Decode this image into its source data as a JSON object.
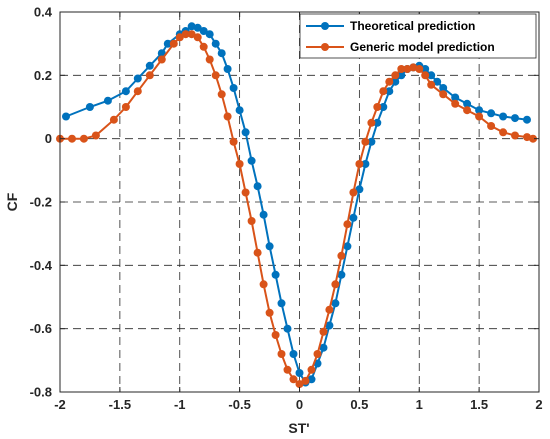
{
  "chart_data": {
    "type": "line",
    "title": "",
    "xlabel": "ST'",
    "ylabel": "CF",
    "xlim": [
      -2,
      2
    ],
    "ylim": [
      -0.8,
      0.4
    ],
    "xticks": [
      -2,
      -1.5,
      -1,
      -0.5,
      0,
      0.5,
      1,
      1.5,
      2
    ],
    "yticks": [
      -0.8,
      -0.6,
      -0.4,
      -0.2,
      0,
      0.2,
      0.4
    ],
    "xtick_labels": [
      "-2",
      "-1.5",
      "-1",
      "-0.5",
      "0",
      "0.5",
      "1",
      "1.5",
      "2"
    ],
    "ytick_labels": [
      "-0.8",
      "-0.6",
      "-0.4",
      "-0.2",
      "0",
      "0.2",
      "0.4"
    ],
    "grid": true,
    "legend_position": "top-right",
    "series": [
      {
        "name": "Theoretical prediction",
        "color": "#0072BD",
        "marker": "circle",
        "x": [
          -1.95,
          -1.75,
          -1.6,
          -1.45,
          -1.35,
          -1.25,
          -1.15,
          -1.1,
          -1.0,
          -0.95,
          -0.9,
          -0.85,
          -0.8,
          -0.75,
          -0.7,
          -0.65,
          -0.6,
          -0.55,
          -0.5,
          -0.45,
          -0.4,
          -0.35,
          -0.3,
          -0.25,
          -0.2,
          -0.15,
          -0.1,
          -0.05,
          0.0,
          0.05,
          0.1,
          0.15,
          0.2,
          0.25,
          0.3,
          0.35,
          0.4,
          0.45,
          0.5,
          0.55,
          0.6,
          0.65,
          0.7,
          0.75,
          0.8,
          0.85,
          0.9,
          0.95,
          1.0,
          1.05,
          1.1,
          1.15,
          1.2,
          1.3,
          1.4,
          1.5,
          1.6,
          1.7,
          1.8,
          1.9
        ],
        "values": [
          0.07,
          0.1,
          0.12,
          0.15,
          0.19,
          0.23,
          0.27,
          0.3,
          0.33,
          0.34,
          0.355,
          0.35,
          0.34,
          0.33,
          0.3,
          0.27,
          0.22,
          0.16,
          0.09,
          0.02,
          -0.07,
          -0.15,
          -0.24,
          -0.34,
          -0.43,
          -0.52,
          -0.6,
          -0.68,
          -0.74,
          -0.77,
          -0.76,
          -0.71,
          -0.66,
          -0.59,
          -0.52,
          -0.43,
          -0.34,
          -0.25,
          -0.16,
          -0.08,
          -0.01,
          0.05,
          0.1,
          0.15,
          0.18,
          0.2,
          0.22,
          0.225,
          0.23,
          0.22,
          0.2,
          0.18,
          0.16,
          0.13,
          0.11,
          0.09,
          0.08,
          0.07,
          0.065,
          0.06
        ]
      },
      {
        "name": "Generic model prediction",
        "color": "#D95319",
        "marker": "circle",
        "x": [
          -2.0,
          -1.9,
          -1.8,
          -1.7,
          -1.55,
          -1.45,
          -1.35,
          -1.25,
          -1.15,
          -1.05,
          -1.0,
          -0.95,
          -0.9,
          -0.85,
          -0.8,
          -0.75,
          -0.7,
          -0.65,
          -0.6,
          -0.55,
          -0.5,
          -0.45,
          -0.4,
          -0.35,
          -0.3,
          -0.25,
          -0.2,
          -0.15,
          -0.1,
          -0.05,
          0.0,
          0.05,
          0.1,
          0.15,
          0.2,
          0.25,
          0.3,
          0.35,
          0.4,
          0.45,
          0.5,
          0.55,
          0.6,
          0.65,
          0.7,
          0.75,
          0.8,
          0.85,
          0.9,
          0.95,
          1.0,
          1.05,
          1.1,
          1.2,
          1.3,
          1.4,
          1.5,
          1.6,
          1.7,
          1.8,
          1.9,
          1.95
        ],
        "values": [
          0.0,
          0.0,
          0.0,
          0.01,
          0.06,
          0.1,
          0.15,
          0.2,
          0.25,
          0.3,
          0.32,
          0.33,
          0.33,
          0.32,
          0.29,
          0.25,
          0.2,
          0.14,
          0.07,
          -0.01,
          -0.08,
          -0.17,
          -0.26,
          -0.36,
          -0.46,
          -0.55,
          -0.62,
          -0.68,
          -0.73,
          -0.76,
          -0.775,
          -0.765,
          -0.73,
          -0.68,
          -0.61,
          -0.54,
          -0.46,
          -0.37,
          -0.27,
          -0.17,
          -0.08,
          -0.01,
          0.05,
          0.1,
          0.15,
          0.18,
          0.2,
          0.22,
          0.22,
          0.225,
          0.22,
          0.2,
          0.17,
          0.14,
          0.11,
          0.09,
          0.07,
          0.04,
          0.02,
          0.01,
          0.005,
          0.0
        ]
      }
    ]
  }
}
